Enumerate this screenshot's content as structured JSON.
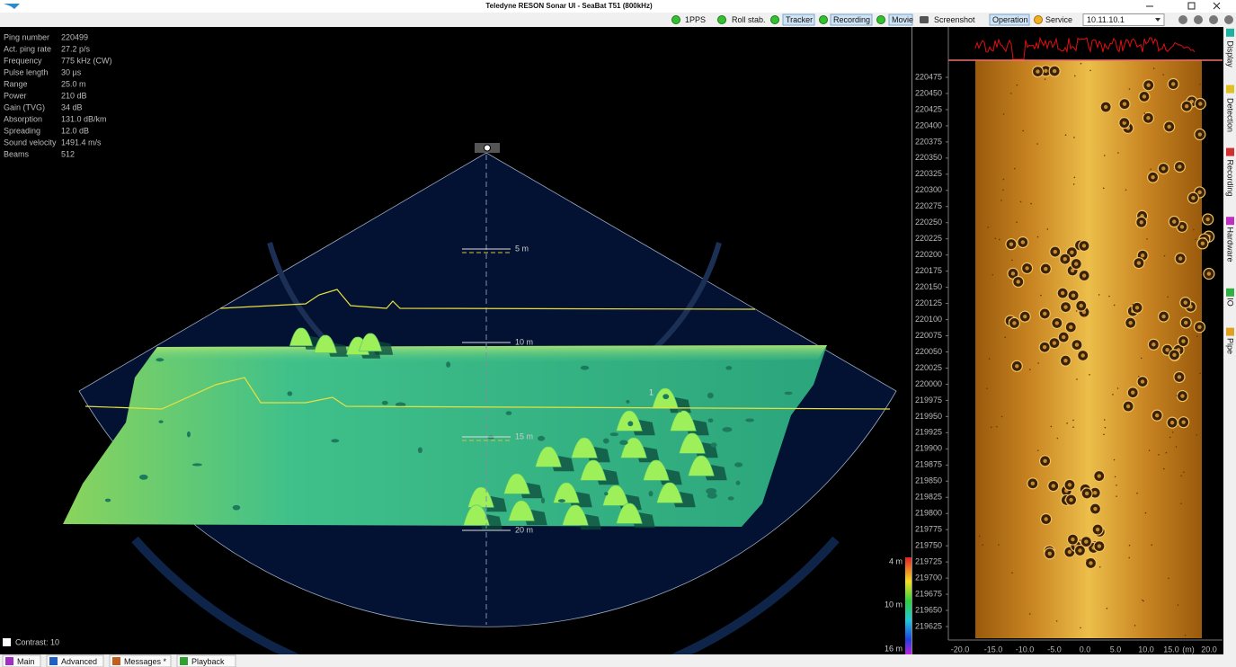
{
  "title_bar": {
    "title": "Teledyne RESON Sonar UI - SeaBat T51 (800kHz)"
  },
  "toolbar": {
    "indicators": [
      "1PPS",
      "Roll stab.",
      "Tracker",
      "Recording",
      "Movie"
    ],
    "screenshot": "Screenshot",
    "modes": [
      "Operation",
      "Service"
    ],
    "ip": "10.11.10.1"
  },
  "info": {
    "rows": [
      [
        "Ping number",
        "220499"
      ],
      [
        "Act. ping rate",
        "27.2 p/s"
      ],
      [
        "Frequency",
        "775 kHz (CW)"
      ],
      [
        "Pulse length",
        "30 µs"
      ],
      [
        "Range",
        "25.0 m"
      ],
      [
        "Power",
        "210 dB"
      ],
      [
        "Gain (TVG)",
        "34 dB"
      ],
      [
        "Absorption",
        "131.0 dB/km"
      ],
      [
        "Spreading",
        "12.0 dB"
      ],
      [
        "Sound velocity",
        "1491.4 m/s"
      ],
      [
        "Beams",
        "512"
      ]
    ]
  },
  "wedge": {
    "depth_labels": [
      "5 m",
      "10 m",
      "15 m",
      "20 m"
    ],
    "marker": "1"
  },
  "color_scale": {
    "labels": [
      "4 m",
      "10 m",
      "16 m"
    ]
  },
  "waterfall": {
    "ping_labels": [
      "220475",
      "220450",
      "220425",
      "220400",
      "220375",
      "220350",
      "220325",
      "220300",
      "220275",
      "220250",
      "220225",
      "220200",
      "220175",
      "220150",
      "220125",
      "220100",
      "220075",
      "220050",
      "220025",
      "220000",
      "219975",
      "219950",
      "219925",
      "219900",
      "219875",
      "219850",
      "219825",
      "219800",
      "219775",
      "219750",
      "219725",
      "219700",
      "219675",
      "219650",
      "219625"
    ],
    "x_labels": [
      "-20.0",
      "-15.0",
      "-10.0",
      "-5.0",
      "0.0",
      "5.0",
      "10.0",
      "15.0",
      "(m)",
      "20.0"
    ]
  },
  "side_tabs": [
    "Display",
    "Detection",
    "Recording",
    "Hardware",
    "IO",
    "Pipe"
  ],
  "contrast": "Contrast: 10",
  "bottom_tabs": [
    "Main",
    "Advanced",
    "Messages *",
    "Playback"
  ]
}
